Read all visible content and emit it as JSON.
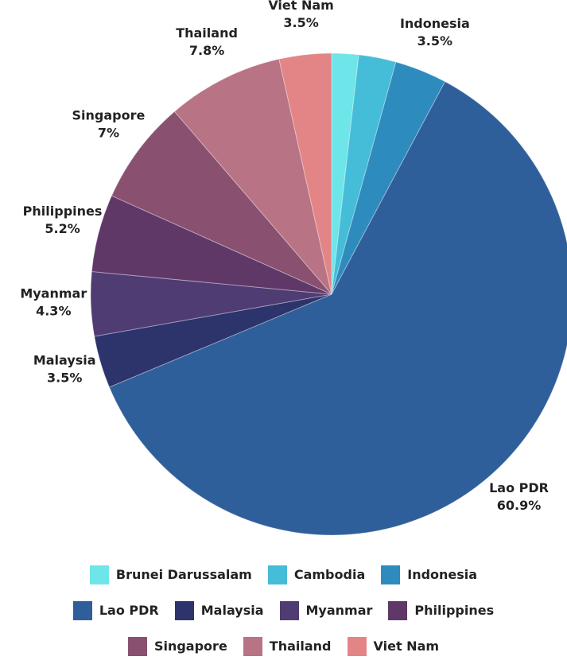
{
  "chart_data": {
    "type": "pie",
    "categories": [
      "Brunei Darussalam",
      "Cambodia",
      "Indonesia",
      "Lao PDR",
      "Malaysia",
      "Myanmar",
      "Philippines",
      "Singapore",
      "Thailand",
      "Viet Nam"
    ],
    "values": [
      1.8,
      2.5,
      3.5,
      60.9,
      3.5,
      4.3,
      5.2,
      7,
      7.8,
      3.5
    ],
    "value_labels": [
      null,
      null,
      "3.5%",
      "60.9%",
      "3.5%",
      "4.3%",
      "5.2%",
      "7%",
      "7.8%",
      "3.5%"
    ],
    "colors": [
      "#6ee5e8",
      "#45bcd8",
      "#2e8bbd",
      "#2f5f9a",
      "#2d336b",
      "#4f3c73",
      "#603868",
      "#8a5070",
      "#b87384",
      "#e38586"
    ],
    "legend": "bottom"
  }
}
